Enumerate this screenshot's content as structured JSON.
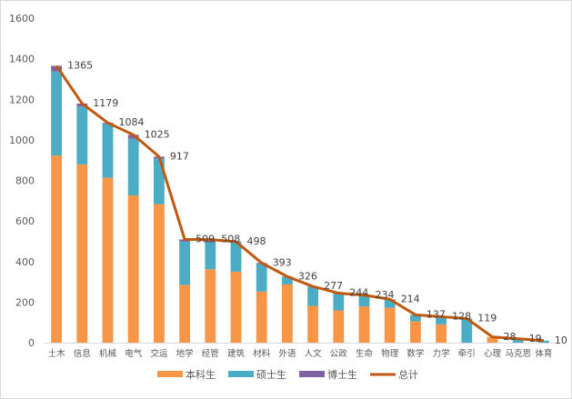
{
  "chart_data": {
    "type": "bar",
    "stacked": true,
    "title": "",
    "xlabel": "",
    "ylabel": "",
    "ylim": [
      0,
      1600
    ],
    "yticks": [
      0,
      200,
      400,
      600,
      800,
      1000,
      1200,
      1400,
      1600
    ],
    "grid": false,
    "legend_position": "bottom",
    "categories": [
      "土木",
      "信息",
      "机械",
      "电气",
      "交运",
      "地学",
      "经管",
      "建筑",
      "材料",
      "外语",
      "人文",
      "公政",
      "生命",
      "物理",
      "数学",
      "力学",
      "牵引",
      "心理",
      "马克思",
      "体育"
    ],
    "series": [
      {
        "name": "本科生",
        "type": "bar",
        "color": "#F79646",
        "values": [
          923,
          879,
          813,
          726,
          683,
          285,
          362,
          350,
          252,
          287,
          181,
          159,
          179,
          172,
          105,
          90,
          0,
          28,
          0,
          0
        ]
      },
      {
        "name": "硕士生",
        "type": "bar",
        "color": "#4BACC6",
        "values": [
          415,
          285,
          267,
          279,
          225,
          213,
          133,
          145,
          135,
          39,
          96,
          85,
          55,
          42,
          32,
          38,
          119,
          0,
          19,
          10
        ]
      },
      {
        "name": "博士生",
        "type": "bar",
        "color": "#8064A2",
        "values": [
          27,
          15,
          4,
          20,
          9,
          11,
          13,
          3,
          6,
          0,
          0,
          0,
          0,
          0,
          0,
          0,
          0,
          0,
          0,
          0
        ]
      },
      {
        "name": "总计",
        "type": "line",
        "color": "#C0580F",
        "values": [
          1365,
          1179,
          1084,
          1025,
          917,
          509,
          508,
          498,
          393,
          326,
          277,
          244,
          234,
          214,
          137,
          128,
          119,
          28,
          19,
          10
        ]
      }
    ],
    "data_labels": [
      "1365",
      "1179",
      "1084",
      "1025",
      "917",
      "509",
      "508",
      "498",
      "393",
      "326",
      "277",
      "244",
      "234",
      "214",
      "137",
      "128",
      "119",
      "28",
      "19",
      "10"
    ]
  }
}
